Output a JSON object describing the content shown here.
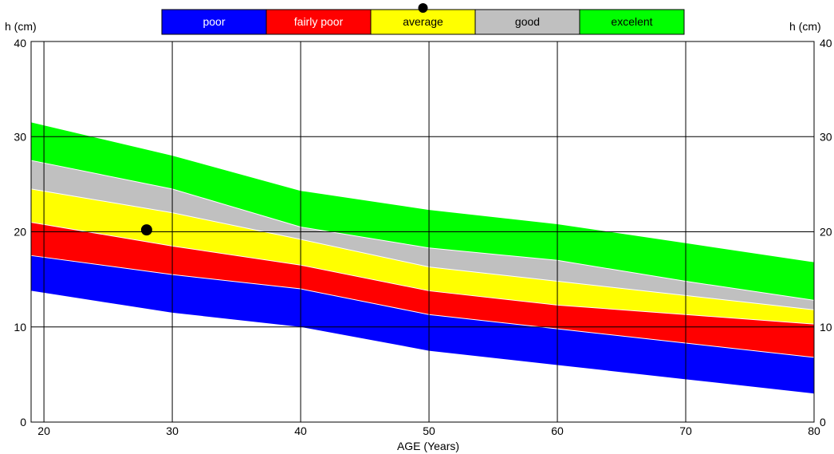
{
  "chart_data": {
    "type": "area",
    "y_unit_left": "h (cm)",
    "y_unit_right": "h (cm)",
    "xlabel": "AGE (Years)",
    "xlim": [
      19,
      80
    ],
    "ylim": [
      0,
      40
    ],
    "x_ticks": [
      20,
      30,
      40,
      50,
      60,
      70,
      80
    ],
    "y_ticks": [
      0,
      10,
      20,
      30,
      40
    ],
    "grid": true,
    "legend_position": "top-center",
    "x": [
      19,
      30,
      40,
      50,
      60,
      70,
      80
    ],
    "bands": [
      {
        "name": "poor",
        "color": "#0000ff",
        "text_color": "#ffffff",
        "lower": [
          13.8,
          11.5,
          10.0,
          7.5,
          6.0,
          4.5,
          3.0
        ],
        "upper": [
          17.5,
          15.5,
          14.0,
          11.3,
          9.8,
          8.3,
          6.8
        ]
      },
      {
        "name": "fairly poor",
        "color": "#ff0000",
        "text_color": "#ffffff",
        "lower": [
          17.5,
          15.5,
          14.0,
          11.3,
          9.8,
          8.3,
          6.8
        ],
        "upper": [
          21.0,
          18.5,
          16.5,
          13.8,
          12.3,
          11.3,
          10.3
        ]
      },
      {
        "name": "average",
        "color": "#ffff00",
        "text_color": "#000000",
        "lower": [
          21.0,
          18.5,
          16.5,
          13.8,
          12.3,
          11.3,
          10.3
        ],
        "upper": [
          24.5,
          22.0,
          19.2,
          16.3,
          14.8,
          13.3,
          11.8
        ]
      },
      {
        "name": "good",
        "color": "#c0c0c0",
        "text_color": "#000000",
        "lower": [
          24.5,
          22.0,
          19.2,
          16.3,
          14.8,
          13.3,
          11.8
        ],
        "upper": [
          27.5,
          24.5,
          20.5,
          18.3,
          17.0,
          14.8,
          12.8
        ]
      },
      {
        "name": "excelent",
        "color": "#00ff00",
        "text_color": "#000000",
        "lower": [
          27.5,
          24.5,
          20.5,
          18.3,
          17.0,
          14.8,
          12.8
        ],
        "upper": [
          31.5,
          28.0,
          24.3,
          22.3,
          20.8,
          18.8,
          16.8
        ]
      }
    ],
    "point": {
      "x": 28,
      "y": 20.2
    },
    "legend_marker_on": "average"
  }
}
